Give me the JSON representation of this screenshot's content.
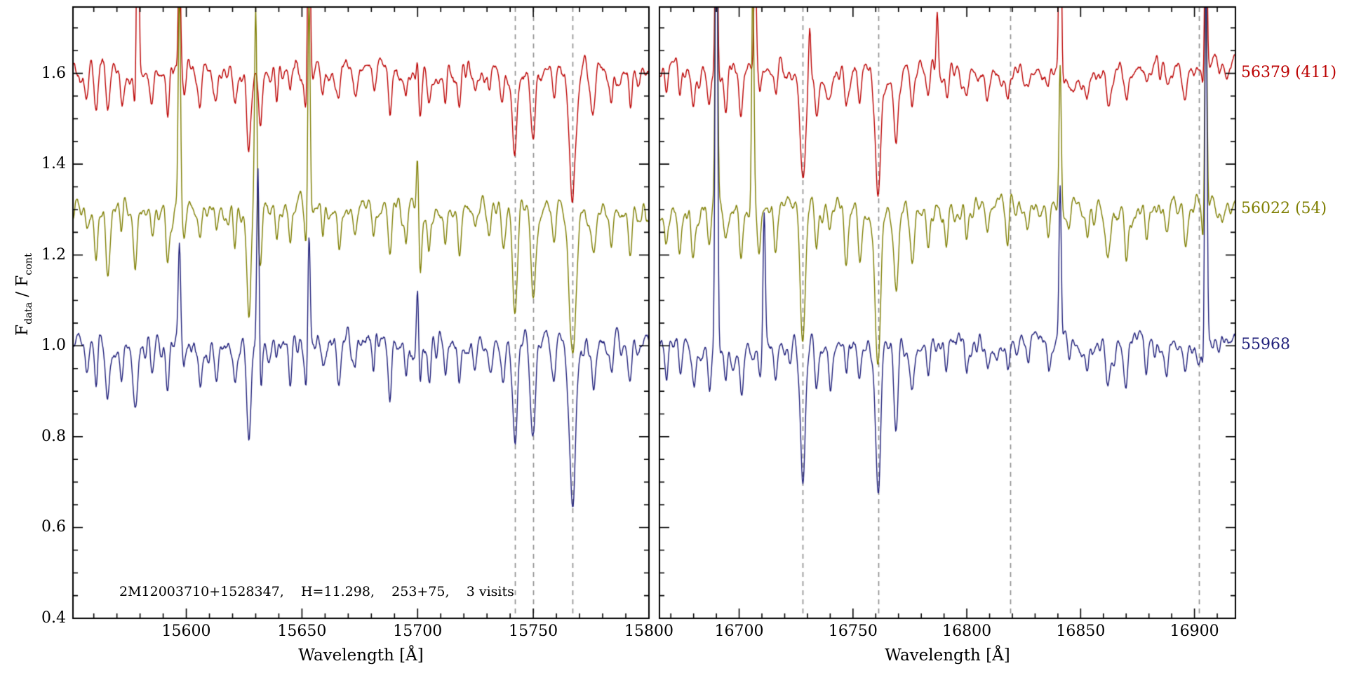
{
  "figure": {
    "annotation": "2M12003710+1528347,    H=11.298,    253+75,    3 visits",
    "ylabel": {
      "f1": "F",
      "sub1": "data",
      "mid": " / F",
      "sub2": "cont"
    }
  },
  "chart_data": {
    "type": "line",
    "title": "",
    "ylabel": "F_data / F_cont",
    "legend_position": "right-outside",
    "grid": false,
    "yrange": [
      0.4,
      1.746
    ],
    "yticks": [
      0.4,
      0.6,
      0.8,
      1.0,
      1.2,
      1.4,
      1.6
    ],
    "noise_sigma": 0.014,
    "series": [
      {
        "mjd": "56379",
        "label": "56379 (411)",
        "color": "#bb0000",
        "offset": 1.6,
        "depth_scale": 0.9,
        "seed": 11
      },
      {
        "mjd": "56022",
        "label": "56022 (54)",
        "color": "#7e7e00",
        "offset": 1.3,
        "depth_scale": 1.2,
        "seed": 22
      },
      {
        "mjd": "55968",
        "label": "55968",
        "color": "#1f1f7a",
        "offset": 1.0,
        "depth_scale": 1.1,
        "seed": 33
      }
    ],
    "panels": [
      {
        "xlabel": "Wavelength [Å]",
        "xrange": [
          15551,
          15800
        ],
        "xticks": [
          15600,
          15650,
          15700,
          15750,
          15800
        ],
        "minor_tick_step": 10,
        "ref_lines": [
          15742,
          15750,
          15767
        ],
        "absorption_lines": [
          [
            15557,
            0.06,
            0.7
          ],
          [
            15561,
            0.08,
            0.7
          ],
          [
            15566,
            0.12,
            0.8
          ],
          [
            15572,
            0.06,
            0.6
          ],
          [
            15578,
            0.11,
            0.8
          ],
          [
            15585,
            0.05,
            0.6
          ],
          [
            15592,
            0.09,
            0.7
          ],
          [
            15599,
            0.05,
            0.6
          ],
          [
            15606,
            0.07,
            0.7
          ],
          [
            15613,
            0.05,
            0.6
          ],
          [
            15621,
            0.08,
            0.7
          ],
          [
            15627,
            0.18,
            0.9
          ],
          [
            15632,
            0.12,
            0.7
          ],
          [
            15639,
            0.05,
            0.6
          ],
          [
            15645,
            0.07,
            0.6
          ],
          [
            15652,
            0.09,
            0.7
          ],
          [
            15659,
            0.05,
            0.6
          ],
          [
            15666,
            0.08,
            0.7
          ],
          [
            15673,
            0.05,
            0.6
          ],
          [
            15681,
            0.06,
            0.6
          ],
          [
            15688,
            0.1,
            0.7
          ],
          [
            15695,
            0.06,
            0.6
          ],
          [
            15701,
            0.09,
            0.7
          ],
          [
            15705,
            0.06,
            0.6
          ],
          [
            15712,
            0.06,
            0.6
          ],
          [
            15718,
            0.08,
            0.7
          ],
          [
            15725,
            0.05,
            0.6
          ],
          [
            15731,
            0.04,
            0.6
          ],
          [
            15737,
            0.07,
            0.7
          ],
          [
            15742,
            0.2,
            1.0
          ],
          [
            15750,
            0.17,
            1.0
          ],
          [
            15759,
            0.08,
            0.8
          ],
          [
            15767,
            0.3,
            1.4
          ],
          [
            15776,
            0.09,
            0.8
          ],
          [
            15784,
            0.06,
            0.7
          ],
          [
            15792,
            0.07,
            0.7
          ]
        ],
        "spikes": {
          "56379": [
            [
              15579,
              0.55
            ],
            [
              15597,
              0.3
            ],
            [
              15653,
              0.55
            ],
            [
              15700,
              0.1
            ]
          ],
          "56022": [
            [
              15597,
              0.5
            ],
            [
              15630,
              0.45
            ],
            [
              15653,
              0.5
            ],
            [
              15700,
              0.16
            ]
          ],
          "55968": [
            [
              15597,
              0.22
            ],
            [
              15631,
              0.42
            ],
            [
              15653,
              0.28
            ],
            [
              15700,
              0.17
            ]
          ]
        }
      },
      {
        "xlabel": "Wavelength [Å]",
        "xrange": [
          16665,
          16918
        ],
        "xticks": [
          16700,
          16750,
          16800,
          16850,
          16900
        ],
        "minor_tick_step": 10,
        "ref_lines": [
          16728,
          16761,
          16819,
          16902
        ],
        "absorption_lines": [
          [
            16668,
            0.06,
            0.7
          ],
          [
            16674,
            0.07,
            0.7
          ],
          [
            16680,
            0.09,
            0.8
          ],
          [
            16687,
            0.07,
            0.7
          ],
          [
            16694,
            0.06,
            0.7
          ],
          [
            16701,
            0.09,
            0.8
          ],
          [
            16709,
            0.06,
            0.7
          ],
          [
            16716,
            0.07,
            0.7
          ],
          [
            16728,
            0.26,
            1.1
          ],
          [
            16734,
            0.1,
            0.8
          ],
          [
            16740,
            0.06,
            0.7
          ],
          [
            16747,
            0.07,
            0.7
          ],
          [
            16753,
            0.08,
            0.8
          ],
          [
            16761,
            0.3,
            1.2
          ],
          [
            16769,
            0.15,
            0.9
          ],
          [
            16776,
            0.08,
            0.8
          ],
          [
            16783,
            0.05,
            0.7
          ],
          [
            16791,
            0.06,
            0.7
          ],
          [
            16800,
            0.05,
            0.7
          ],
          [
            16809,
            0.05,
            0.7
          ],
          [
            16818,
            0.05,
            0.7
          ],
          [
            16827,
            0.04,
            0.7
          ],
          [
            16836,
            0.05,
            0.7
          ],
          [
            16845,
            0.04,
            0.7
          ],
          [
            16853,
            0.05,
            0.7
          ],
          [
            16862,
            0.1,
            0.9
          ],
          [
            16870,
            0.07,
            0.8
          ],
          [
            16879,
            0.05,
            0.7
          ],
          [
            16888,
            0.04,
            0.7
          ],
          [
            16896,
            0.05,
            0.7
          ],
          [
            16904,
            0.05,
            0.7
          ]
        ],
        "spikes": {
          "56379": [
            [
              16690,
              0.55
            ],
            [
              16707,
              0.28
            ],
            [
              16731,
              0.12
            ],
            [
              16787,
              0.15
            ],
            [
              16841,
              0.55
            ],
            [
              16905,
              0.45
            ]
          ],
          "56022": [
            [
              16690,
              0.85
            ],
            [
              16706,
              0.5
            ],
            [
              16841,
              0.35
            ],
            [
              16905,
              0.55
            ]
          ],
          "55968": [
            [
              16690,
              1.3
            ],
            [
              16711,
              0.3
            ],
            [
              16841,
              0.35
            ],
            [
              16905,
              0.85
            ]
          ]
        }
      }
    ]
  }
}
